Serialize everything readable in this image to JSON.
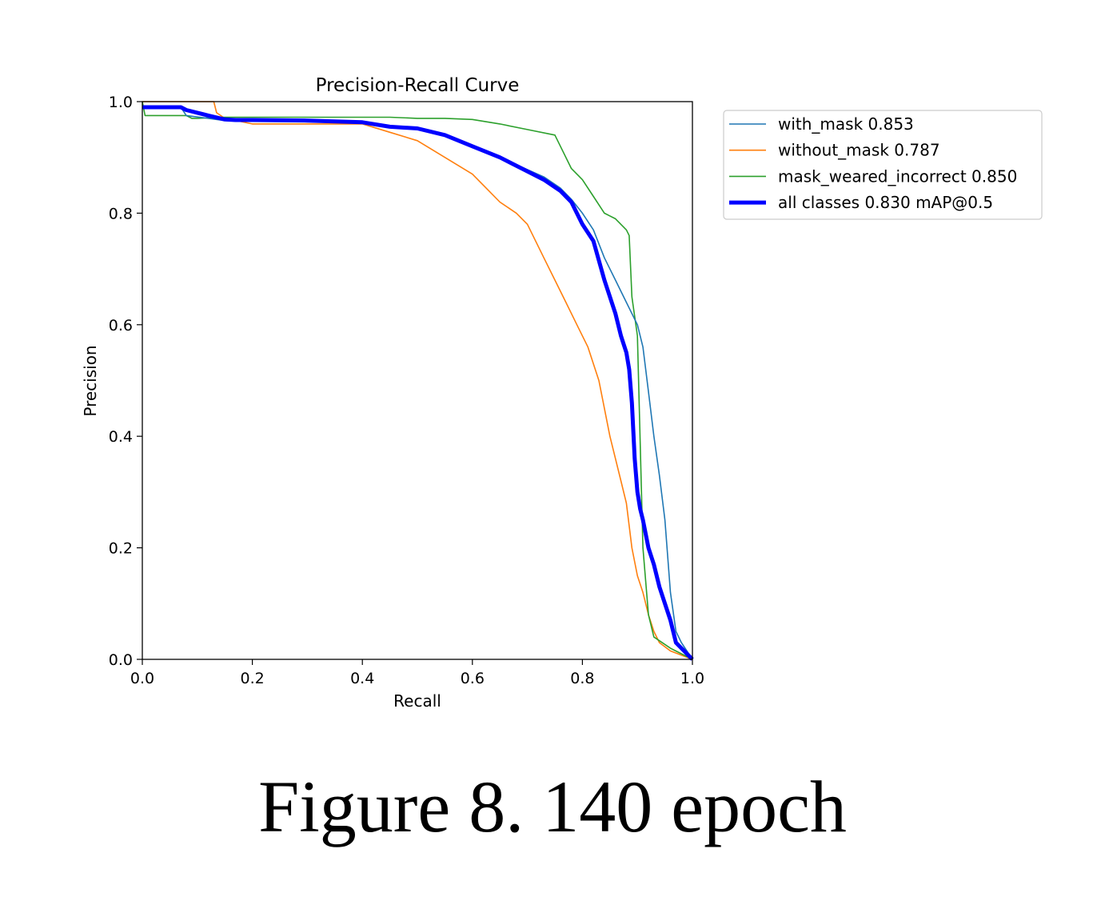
{
  "figure": {
    "caption": "Figure 8. 140 epoch"
  },
  "chart_data": {
    "type": "line",
    "title": "Precision-Recall Curve",
    "xlabel": "Recall",
    "ylabel": "Precision",
    "xlim": [
      0,
      1
    ],
    "ylim": [
      0,
      1
    ],
    "xticks": [
      "0.0",
      "0.2",
      "0.4",
      "0.6",
      "0.8",
      "1.0"
    ],
    "yticks": [
      "0.0",
      "0.2",
      "0.4",
      "0.6",
      "0.8",
      "1.0"
    ],
    "grid": false,
    "legend_position": "outside-right-top",
    "series": [
      {
        "name": "with_mask 0.853",
        "color": "#1f77b4",
        "stroke": "thin",
        "x": [
          0.0,
          0.07,
          0.08,
          0.12,
          0.15,
          0.17,
          0.2,
          0.3,
          0.4,
          0.45,
          0.5,
          0.55,
          0.6,
          0.65,
          0.7,
          0.73,
          0.76,
          0.78,
          0.8,
          0.82,
          0.84,
          0.86,
          0.88,
          0.9,
          0.91,
          0.92,
          0.93,
          0.94,
          0.95,
          0.96,
          0.97,
          0.98,
          1.0
        ],
        "y": [
          0.99,
          0.99,
          0.975,
          0.97,
          0.966,
          0.965,
          0.965,
          0.965,
          0.962,
          0.955,
          0.95,
          0.94,
          0.92,
          0.9,
          0.878,
          0.865,
          0.845,
          0.825,
          0.8,
          0.77,
          0.72,
          0.68,
          0.64,
          0.6,
          0.56,
          0.48,
          0.4,
          0.33,
          0.25,
          0.12,
          0.05,
          0.03,
          0.0
        ]
      },
      {
        "name": "without_mask 0.787",
        "color": "#ff7f0e",
        "stroke": "thin",
        "x": [
          0.0,
          0.13,
          0.135,
          0.15,
          0.2,
          0.3,
          0.4,
          0.45,
          0.5,
          0.55,
          0.6,
          0.62,
          0.65,
          0.68,
          0.7,
          0.73,
          0.75,
          0.77,
          0.79,
          0.81,
          0.83,
          0.84,
          0.85,
          0.86,
          0.87,
          0.88,
          0.89,
          0.9,
          0.91,
          0.92,
          0.93,
          0.94,
          0.96,
          1.0
        ],
        "y": [
          1.0,
          1.0,
          0.98,
          0.97,
          0.96,
          0.96,
          0.96,
          0.945,
          0.93,
          0.9,
          0.87,
          0.85,
          0.82,
          0.8,
          0.78,
          0.72,
          0.68,
          0.64,
          0.6,
          0.56,
          0.5,
          0.45,
          0.4,
          0.36,
          0.32,
          0.28,
          0.2,
          0.15,
          0.12,
          0.08,
          0.05,
          0.03,
          0.015,
          0.0
        ]
      },
      {
        "name": "mask_weared_incorrect 0.850",
        "color": "#2ca02c",
        "stroke": "thin",
        "x": [
          0.0,
          0.005,
          0.08,
          0.09,
          0.1,
          0.15,
          0.2,
          0.3,
          0.4,
          0.45,
          0.5,
          0.55,
          0.6,
          0.65,
          0.7,
          0.75,
          0.76,
          0.78,
          0.8,
          0.82,
          0.84,
          0.86,
          0.88,
          0.885,
          0.89,
          0.9,
          0.91,
          0.92,
          0.93,
          0.96,
          1.0
        ],
        "y": [
          1.0,
          0.975,
          0.975,
          0.97,
          0.97,
          0.972,
          0.972,
          0.972,
          0.972,
          0.972,
          0.97,
          0.97,
          0.968,
          0.96,
          0.95,
          0.94,
          0.92,
          0.88,
          0.86,
          0.83,
          0.8,
          0.79,
          0.77,
          0.76,
          0.65,
          0.58,
          0.2,
          0.08,
          0.04,
          0.02,
          0.0
        ]
      },
      {
        "name": "all classes 0.830 mAP@0.5",
        "color": "#0000ff",
        "stroke": "thick",
        "x": [
          0.0,
          0.07,
          0.08,
          0.12,
          0.15,
          0.17,
          0.2,
          0.3,
          0.4,
          0.45,
          0.5,
          0.55,
          0.6,
          0.65,
          0.7,
          0.73,
          0.76,
          0.78,
          0.8,
          0.82,
          0.84,
          0.86,
          0.87,
          0.88,
          0.885,
          0.89,
          0.895,
          0.9,
          0.905,
          0.91,
          0.92,
          0.93,
          0.94,
          0.95,
          0.96,
          0.97,
          1.0
        ],
        "y": [
          0.99,
          0.99,
          0.985,
          0.975,
          0.968,
          0.967,
          0.967,
          0.966,
          0.963,
          0.955,
          0.952,
          0.94,
          0.92,
          0.9,
          0.875,
          0.86,
          0.84,
          0.82,
          0.78,
          0.75,
          0.68,
          0.62,
          0.58,
          0.55,
          0.52,
          0.46,
          0.36,
          0.3,
          0.27,
          0.25,
          0.2,
          0.17,
          0.13,
          0.1,
          0.07,
          0.03,
          0.0
        ]
      }
    ]
  }
}
